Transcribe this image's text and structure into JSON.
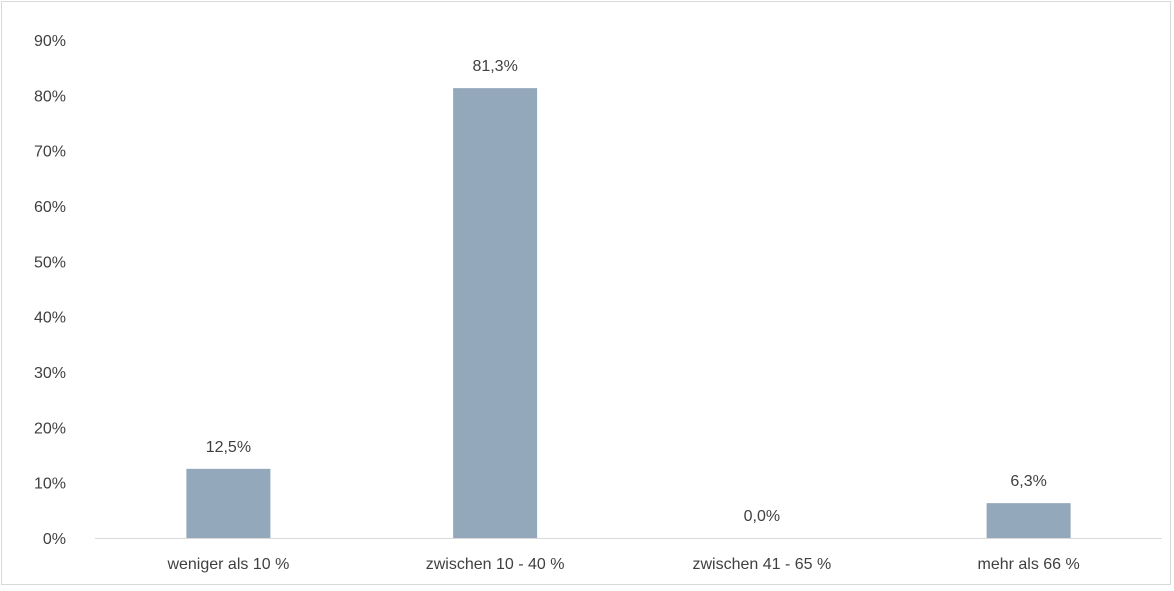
{
  "chart_data": {
    "type": "bar",
    "title": "",
    "xlabel": "",
    "ylabel": "",
    "categories": [
      "weniger als 10 %",
      "zwischen 10 - 40 %",
      "zwischen 41 - 65 %",
      "mehr als 66 %"
    ],
    "values": [
      12.5,
      81.3,
      0.0,
      6.3
    ],
    "data_labels": [
      "12,5%",
      "81,3%",
      "0,0%",
      "6,3%"
    ],
    "ylim": [
      0,
      90
    ],
    "yticks": [
      0,
      10,
      20,
      30,
      40,
      50,
      60,
      70,
      80,
      90
    ],
    "ytick_labels": [
      "0%",
      "10%",
      "20%",
      "30%",
      "40%",
      "50%",
      "60%",
      "70%",
      "80%",
      "90%"
    ],
    "grid": false,
    "legend": "none",
    "colors": {
      "bar": "#93a8ba",
      "axis": "#d9d9d9",
      "text": "#404040"
    }
  }
}
